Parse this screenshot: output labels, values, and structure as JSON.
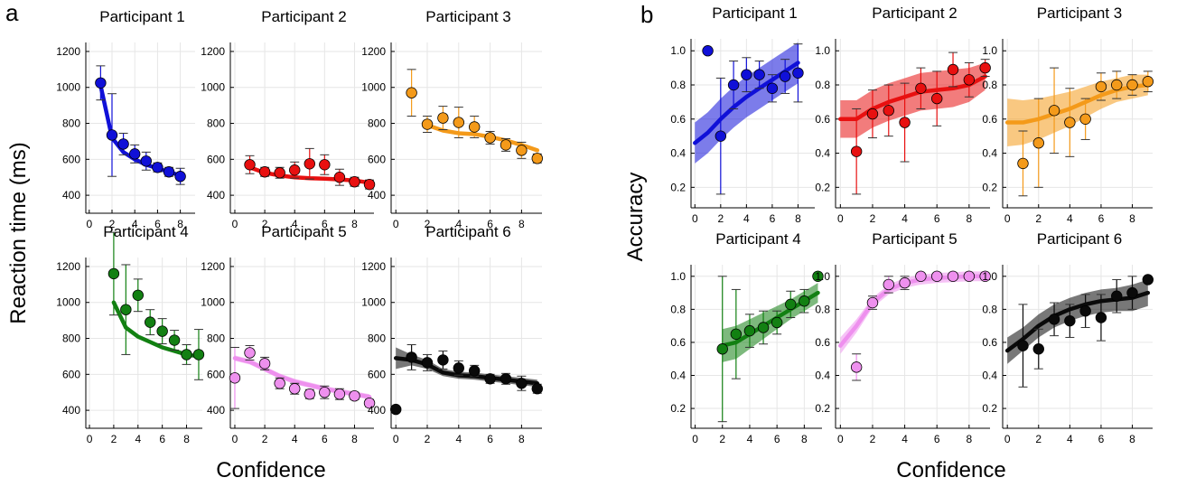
{
  "figure": {
    "panel_a_letter": "a",
    "panel_b_letter": "b",
    "a_ylabel": "Reaction time (ms)",
    "a_xlabel": "Confidence",
    "b_ylabel": "Accuracy",
    "b_xlabel": "Confidence"
  },
  "colors": {
    "p1": "#1010d8",
    "p2": "#e81010",
    "p3": "#f49a1a",
    "p4": "#128012",
    "p5": "#ee90ee",
    "p6": "#0a0a0a"
  },
  "chart_data": [
    {
      "panel": "a",
      "type": "scatter",
      "title": "Participant 1",
      "ylim": [
        300,
        1250
      ],
      "xlim": [
        -0.3,
        9.3
      ],
      "yticks": [
        400,
        600,
        800,
        1000,
        1200
      ],
      "xticks": [
        0,
        2,
        4,
        6,
        8
      ],
      "grid": true,
      "x": [
        1,
        2,
        3,
        4,
        5,
        6,
        7,
        8
      ],
      "y": [
        1025,
        735,
        685,
        630,
        590,
        555,
        530,
        505
      ],
      "err": [
        95,
        230,
        60,
        50,
        50,
        25,
        25,
        45
      ],
      "fit_x": [
        1,
        2,
        3,
        4,
        5,
        6,
        7,
        8
      ],
      "fit_y": [
        1010,
        720,
        640,
        600,
        570,
        550,
        530,
        510
      ],
      "fit_band": [
        0,
        0,
        0,
        0,
        0,
        0,
        0,
        0
      ]
    },
    {
      "panel": "a",
      "type": "scatter",
      "title": "Participant 2",
      "ylim": [
        300,
        1250
      ],
      "xlim": [
        -0.3,
        9.3
      ],
      "yticks": [
        400,
        600,
        800,
        1000,
        1200
      ],
      "xticks": [
        0,
        2,
        4,
        6,
        8
      ],
      "grid": true,
      "x": [
        1,
        2,
        3,
        4,
        5,
        6,
        7,
        8,
        9
      ],
      "y": [
        570,
        530,
        525,
        540,
        575,
        570,
        500,
        475,
        460
      ],
      "err": [
        50,
        25,
        30,
        45,
        85,
        55,
        45,
        25,
        25
      ],
      "fit_x": [
        1,
        2,
        3,
        4,
        5,
        6,
        7,
        8,
        9
      ],
      "fit_y": [
        555,
        525,
        510,
        500,
        495,
        492,
        488,
        482,
        470
      ],
      "fit_band": [
        0,
        0,
        0,
        0,
        0,
        0,
        0,
        0,
        0
      ]
    },
    {
      "panel": "a",
      "type": "scatter",
      "title": "Participant 3",
      "ylim": [
        300,
        1250
      ],
      "xlim": [
        -0.3,
        9.3
      ],
      "yticks": [
        400,
        600,
        800,
        1000,
        1200
      ],
      "xticks": [
        0,
        2,
        4,
        6,
        8
      ],
      "grid": true,
      "x": [
        1,
        2,
        3,
        4,
        5,
        6,
        7,
        8,
        9
      ],
      "y": [
        970,
        795,
        830,
        805,
        780,
        720,
        680,
        650,
        605
      ],
      "err": [
        130,
        45,
        65,
        85,
        60,
        35,
        35,
        45,
        25
      ],
      "fit_x": [
        2,
        3,
        4,
        5,
        6,
        7,
        8,
        9
      ],
      "fit_y": [
        790,
        760,
        745,
        740,
        725,
        705,
        680,
        650
      ],
      "fit_band": [
        0,
        0,
        0,
        0,
        0,
        0,
        0,
        0
      ]
    },
    {
      "panel": "a",
      "type": "scatter",
      "title": "Participant 4",
      "ylim": [
        300,
        1250
      ],
      "xlim": [
        -0.3,
        9.3
      ],
      "yticks": [
        400,
        600,
        800,
        1000,
        1200
      ],
      "xticks": [
        0,
        2,
        4,
        6,
        8
      ],
      "grid": true,
      "x": [
        2,
        3,
        4,
        5,
        6,
        7,
        8,
        9
      ],
      "y": [
        1160,
        960,
        1040,
        890,
        840,
        790,
        710,
        710
      ],
      "err": [
        230,
        250,
        90,
        70,
        70,
        55,
        55,
        140
      ],
      "fit_x": [
        2,
        3,
        4,
        5,
        6,
        7,
        8,
        9
      ],
      "fit_y": [
        1000,
        860,
        810,
        780,
        750,
        730,
        710,
        700
      ],
      "fit_band": [
        0,
        0,
        0,
        0,
        0,
        0,
        0,
        0
      ]
    },
    {
      "panel": "a",
      "type": "scatter",
      "title": "Participant 5",
      "ylim": [
        300,
        1250
      ],
      "xlim": [
        -0.3,
        9.3
      ],
      "yticks": [
        400,
        600,
        800,
        1000,
        1200
      ],
      "xticks": [
        0,
        2,
        4,
        6,
        8
      ],
      "grid": true,
      "x": [
        0,
        1,
        2,
        3,
        4,
        5,
        6,
        7,
        8,
        9
      ],
      "y": [
        580,
        720,
        660,
        550,
        520,
        490,
        500,
        490,
        480,
        440
      ],
      "err": [
        170,
        40,
        35,
        30,
        30,
        25,
        35,
        30,
        20,
        20
      ],
      "fit_x": [
        0,
        1,
        2,
        3,
        4,
        5,
        6,
        7,
        8,
        9
      ],
      "fit_y": [
        690,
        670,
        630,
        590,
        560,
        540,
        520,
        505,
        490,
        475
      ],
      "fit_band": [
        15,
        15,
        15,
        15,
        15,
        15,
        15,
        15,
        15,
        15
      ]
    },
    {
      "panel": "a",
      "type": "scatter",
      "title": "Participant 6",
      "ylim": [
        300,
        1250
      ],
      "xlim": [
        -0.3,
        9.3
      ],
      "yticks": [
        400,
        600,
        800,
        1000,
        1200
      ],
      "xticks": [
        0,
        2,
        4,
        6,
        8
      ],
      "grid": true,
      "x": [
        0,
        1,
        2,
        3,
        4,
        5,
        6,
        7,
        8,
        9
      ],
      "y": [
        405,
        695,
        665,
        680,
        635,
        620,
        575,
        575,
        550,
        520
      ],
      "err": [
        0,
        70,
        45,
        50,
        40,
        30,
        25,
        30,
        40,
        25
      ],
      "fit_x": [
        0,
        1,
        2,
        3,
        4,
        5,
        6,
        7,
        8,
        9
      ],
      "fit_y": [
        690,
        680,
        655,
        610,
        595,
        590,
        580,
        570,
        560,
        550
      ],
      "fit_band": [
        60,
        30,
        25,
        20,
        20,
        20,
        20,
        20,
        20,
        20
      ]
    },
    {
      "panel": "b",
      "type": "scatter",
      "title": "Participant 1",
      "ylim": [
        0.08,
        1.07
      ],
      "xlim": [
        -0.3,
        9.3
      ],
      "yticks": [
        0.2,
        0.4,
        0.6,
        0.8,
        1.0
      ],
      "ytick_labels": [
        "0.2",
        "0.4",
        "0.6",
        "0.8",
        "1.0"
      ],
      "xticks": [
        0,
        2,
        4,
        6,
        8
      ],
      "grid": true,
      "x": [
        1,
        2,
        3,
        4,
        5,
        6,
        7,
        8
      ],
      "y": [
        1.0,
        0.5,
        0.8,
        0.86,
        0.86,
        0.78,
        0.85,
        0.87
      ],
      "err": [
        0,
        0.34,
        0.14,
        0.1,
        0.08,
        0.08,
        0.1,
        0.17
      ],
      "fit_x": [
        0,
        1,
        2,
        3,
        4,
        5,
        6,
        7,
        8
      ],
      "fit_y": [
        0.46,
        0.52,
        0.6,
        0.67,
        0.73,
        0.78,
        0.83,
        0.88,
        0.93
      ],
      "fit_band": [
        0.12,
        0.12,
        0.12,
        0.12,
        0.12,
        0.12,
        0.12,
        0.12,
        0.12
      ]
    },
    {
      "panel": "b",
      "type": "scatter",
      "title": "Participant 2",
      "ylim": [
        0.08,
        1.07
      ],
      "xlim": [
        -0.3,
        9.3
      ],
      "yticks": [
        0.2,
        0.4,
        0.6,
        0.8,
        1.0
      ],
      "ytick_labels": [
        "0.2",
        "0.4",
        "0.6",
        "0.8",
        "1.0"
      ],
      "xticks": [
        0,
        2,
        4,
        6,
        8
      ],
      "grid": true,
      "x": [
        1,
        2,
        3,
        4,
        5,
        6,
        7,
        8,
        9
      ],
      "y": [
        0.41,
        0.63,
        0.65,
        0.58,
        0.78,
        0.72,
        0.89,
        0.83,
        0.9
      ],
      "err": [
        0.25,
        0.14,
        0.15,
        0.23,
        0.12,
        0.16,
        0.1,
        0.1,
        0.05
      ],
      "fit_x": [
        0,
        1,
        2,
        3,
        4,
        5,
        6,
        7,
        8,
        9
      ],
      "fit_y": [
        0.6,
        0.6,
        0.66,
        0.7,
        0.73,
        0.76,
        0.77,
        0.78,
        0.8,
        0.85
      ],
      "fit_band": [
        0.11,
        0.11,
        0.11,
        0.11,
        0.11,
        0.11,
        0.11,
        0.11,
        0.1,
        0.08
      ]
    },
    {
      "panel": "b",
      "type": "scatter",
      "title": "Participant 3",
      "ylim": [
        0.08,
        1.07
      ],
      "xlim": [
        -0.3,
        9.3
      ],
      "yticks": [
        0.2,
        0.4,
        0.6,
        0.8,
        1.0
      ],
      "ytick_labels": [
        "0.2",
        "0.4",
        "0.6",
        "0.8",
        "1.0"
      ],
      "xticks": [
        0,
        2,
        4,
        6,
        8
      ],
      "grid": true,
      "x": [
        1,
        2,
        3,
        4,
        5,
        6,
        7,
        8,
        9
      ],
      "y": [
        0.34,
        0.46,
        0.65,
        0.58,
        0.6,
        0.79,
        0.8,
        0.8,
        0.82
      ],
      "err": [
        0.19,
        0.26,
        0.25,
        0.2,
        0.12,
        0.08,
        0.08,
        0.06,
        0.06
      ],
      "fit_x": [
        0,
        1,
        2,
        3,
        4,
        5,
        6,
        7,
        8,
        9
      ],
      "fit_y": [
        0.58,
        0.58,
        0.6,
        0.63,
        0.66,
        0.7,
        0.74,
        0.77,
        0.79,
        0.8
      ],
      "fit_band": [
        0.14,
        0.13,
        0.12,
        0.11,
        0.1,
        0.09,
        0.08,
        0.07,
        0.07,
        0.06
      ]
    },
    {
      "panel": "b",
      "type": "scatter",
      "title": "Participant 4",
      "ylim": [
        0.08,
        1.07
      ],
      "xlim": [
        -0.3,
        9.3
      ],
      "yticks": [
        0.2,
        0.4,
        0.6,
        0.8,
        1.0
      ],
      "ytick_labels": [
        "0.2",
        "0.4",
        "0.6",
        "0.8",
        "1.0"
      ],
      "xticks": [
        0,
        2,
        4,
        6,
        8
      ],
      "grid": true,
      "x": [
        2,
        3,
        4,
        5,
        6,
        7,
        8,
        9
      ],
      "y": [
        0.56,
        0.65,
        0.67,
        0.69,
        0.72,
        0.83,
        0.85,
        1.0
      ],
      "err": [
        0.44,
        0.27,
        0.1,
        0.1,
        0.07,
        0.08,
        0.07,
        0
      ],
      "fit_x": [
        2,
        3,
        4,
        5,
        6,
        7,
        8,
        9
      ],
      "fit_y": [
        0.58,
        0.6,
        0.65,
        0.7,
        0.75,
        0.8,
        0.85,
        0.9
      ],
      "fit_band": [
        0.1,
        0.1,
        0.09,
        0.08,
        0.07,
        0.06,
        0.06,
        0.06
      ]
    },
    {
      "panel": "b",
      "type": "scatter",
      "title": "Participant 5",
      "ylim": [
        0.08,
        1.07
      ],
      "xlim": [
        -0.3,
        9.3
      ],
      "yticks": [
        0.2,
        0.4,
        0.6,
        0.8,
        1.0
      ],
      "ytick_labels": [
        "0.2",
        "0.4",
        "0.6",
        "0.8",
        "1.0"
      ],
      "xticks": [
        0,
        2,
        4,
        6,
        8
      ],
      "grid": true,
      "x": [
        1,
        2,
        3,
        4,
        5,
        6,
        7,
        8,
        9
      ],
      "y": [
        0.45,
        0.84,
        0.95,
        0.96,
        1.0,
        1.0,
        1.0,
        1.0,
        1.0
      ],
      "err": [
        0.08,
        0.04,
        0.05,
        0.04,
        0,
        0,
        0,
        0,
        0
      ],
      "fit_x": [
        0,
        1,
        2,
        3,
        4,
        5,
        6,
        7,
        8,
        9
      ],
      "fit_y": [
        0.58,
        0.7,
        0.84,
        0.92,
        0.96,
        0.98,
        0.99,
        0.995,
        1.0,
        1.0
      ],
      "fit_band": [
        0.05,
        0.04,
        0.03,
        0.03,
        0.03,
        0.03,
        0.03,
        0.03,
        0.03,
        0.03
      ]
    },
    {
      "panel": "b",
      "type": "scatter",
      "title": "Participant 6",
      "ylim": [
        0.08,
        1.07
      ],
      "xlim": [
        -0.3,
        9.3
      ],
      "yticks": [
        0.2,
        0.4,
        0.6,
        0.8,
        1.0
      ],
      "ytick_labels": [
        "0.2",
        "0.4",
        "0.6",
        "0.8",
        "1.0"
      ],
      "xticks": [
        0,
        2,
        4,
        6,
        8
      ],
      "grid": true,
      "x": [
        1,
        2,
        3,
        4,
        5,
        6,
        7,
        8,
        9
      ],
      "y": [
        0.58,
        0.56,
        0.74,
        0.73,
        0.79,
        0.75,
        0.88,
        0.9,
        0.98
      ],
      "err": [
        0.25,
        0.12,
        0.1,
        0.1,
        0.1,
        0.14,
        0.1,
        0.1,
        0
      ],
      "fit_x": [
        0,
        1,
        2,
        3,
        4,
        5,
        6,
        7,
        8,
        9
      ],
      "fit_y": [
        0.55,
        0.62,
        0.7,
        0.76,
        0.8,
        0.83,
        0.85,
        0.86,
        0.87,
        0.9
      ],
      "fit_band": [
        0.08,
        0.07,
        0.07,
        0.07,
        0.07,
        0.07,
        0.07,
        0.07,
        0.08,
        0.08
      ]
    }
  ]
}
